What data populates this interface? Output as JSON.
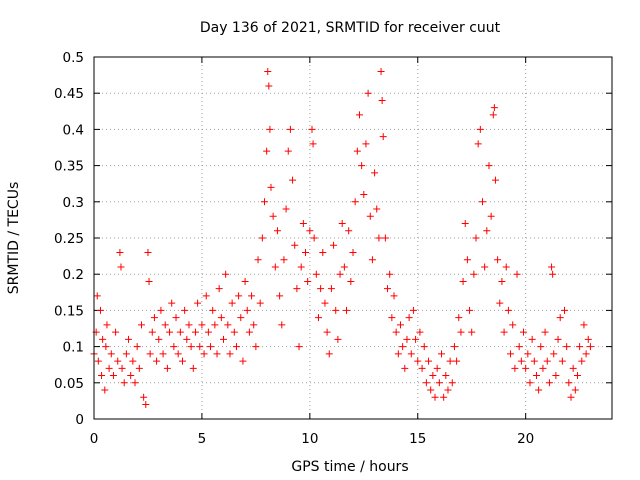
{
  "chart_data": {
    "type": "scatter",
    "title": "Day 136 of 2021, SRMTID for receiver cuut",
    "xlabel": "GPS time / hours",
    "ylabel": "SRMTID / TECUs",
    "xlim": [
      0,
      24
    ],
    "ylim": [
      0,
      0.5
    ],
    "x_ticks": [
      "0",
      "5",
      "10",
      "15",
      "20"
    ],
    "y_ticks": [
      "0",
      "0.05",
      "0.1",
      "0.15",
      "0.2",
      "0.25",
      "0.3",
      "0.35",
      "0.4",
      "0.45",
      "0.5"
    ],
    "grid": true,
    "marker": "+",
    "color": "#ff0000",
    "series": [
      {
        "values": [
          [
            0.0,
            0.09
          ],
          [
            0.1,
            0.12
          ],
          [
            0.15,
            0.17
          ],
          [
            0.2,
            0.08
          ],
          [
            0.3,
            0.15
          ],
          [
            0.35,
            0.06
          ],
          [
            0.4,
            0.11
          ],
          [
            0.5,
            0.04
          ],
          [
            0.55,
            0.1
          ],
          [
            0.6,
            0.13
          ],
          [
            0.7,
            0.07
          ],
          [
            0.8,
            0.09
          ],
          [
            0.9,
            0.06
          ],
          [
            1.0,
            0.12
          ],
          [
            1.1,
            0.08
          ],
          [
            1.2,
            0.23
          ],
          [
            1.25,
            0.21
          ],
          [
            1.3,
            0.07
          ],
          [
            1.4,
            0.05
          ],
          [
            1.5,
            0.09
          ],
          [
            1.6,
            0.11
          ],
          [
            1.7,
            0.06
          ],
          [
            1.8,
            0.08
          ],
          [
            1.9,
            0.05
          ],
          [
            2.0,
            0.1
          ],
          [
            2.1,
            0.07
          ],
          [
            2.2,
            0.13
          ],
          [
            2.3,
            0.03
          ],
          [
            2.4,
            0.02
          ],
          [
            2.5,
            0.23
          ],
          [
            2.55,
            0.19
          ],
          [
            2.6,
            0.09
          ],
          [
            2.7,
            0.12
          ],
          [
            2.8,
            0.14
          ],
          [
            2.9,
            0.08
          ],
          [
            3.0,
            0.11
          ],
          [
            3.1,
            0.15
          ],
          [
            3.2,
            0.09
          ],
          [
            3.3,
            0.13
          ],
          [
            3.4,
            0.07
          ],
          [
            3.5,
            0.12
          ],
          [
            3.6,
            0.16
          ],
          [
            3.7,
            0.1
          ],
          [
            3.8,
            0.14
          ],
          [
            3.9,
            0.09
          ],
          [
            4.0,
            0.12
          ],
          [
            4.1,
            0.08
          ],
          [
            4.2,
            0.15
          ],
          [
            4.3,
            0.11
          ],
          [
            4.4,
            0.13
          ],
          [
            4.5,
            0.1
          ],
          [
            4.6,
            0.07
          ],
          [
            4.7,
            0.12
          ],
          [
            4.8,
            0.16
          ],
          [
            4.9,
            0.1
          ],
          [
            5.0,
            0.13
          ],
          [
            5.1,
            0.09
          ],
          [
            5.2,
            0.17
          ],
          [
            5.3,
            0.12
          ],
          [
            5.4,
            0.1
          ],
          [
            5.5,
            0.15
          ],
          [
            5.6,
            0.13
          ],
          [
            5.7,
            0.09
          ],
          [
            5.8,
            0.18
          ],
          [
            5.9,
            0.14
          ],
          [
            6.0,
            0.11
          ],
          [
            6.1,
            0.2
          ],
          [
            6.2,
            0.13
          ],
          [
            6.3,
            0.09
          ],
          [
            6.4,
            0.16
          ],
          [
            6.5,
            0.12
          ],
          [
            6.6,
            0.1
          ],
          [
            6.7,
            0.17
          ],
          [
            6.8,
            0.14
          ],
          [
            6.9,
            0.08
          ],
          [
            7.0,
            0.19
          ],
          [
            7.1,
            0.15
          ],
          [
            7.2,
            0.12
          ],
          [
            7.3,
            0.17
          ],
          [
            7.4,
            0.13
          ],
          [
            7.5,
            0.1
          ],
          [
            7.6,
            0.22
          ],
          [
            7.7,
            0.16
          ],
          [
            7.8,
            0.25
          ],
          [
            7.9,
            0.3
          ],
          [
            8.0,
            0.37
          ],
          [
            8.05,
            0.48
          ],
          [
            8.1,
            0.46
          ],
          [
            8.15,
            0.4
          ],
          [
            8.2,
            0.32
          ],
          [
            8.3,
            0.28
          ],
          [
            8.4,
            0.21
          ],
          [
            8.5,
            0.26
          ],
          [
            8.6,
            0.17
          ],
          [
            8.7,
            0.13
          ],
          [
            8.8,
            0.22
          ],
          [
            8.9,
            0.29
          ],
          [
            9.0,
            0.37
          ],
          [
            9.1,
            0.4
          ],
          [
            9.2,
            0.33
          ],
          [
            9.3,
            0.24
          ],
          [
            9.4,
            0.18
          ],
          [
            9.5,
            0.1
          ],
          [
            9.6,
            0.21
          ],
          [
            9.7,
            0.27
          ],
          [
            9.8,
            0.23
          ],
          [
            9.9,
            0.19
          ],
          [
            10.0,
            0.26
          ],
          [
            10.1,
            0.4
          ],
          [
            10.15,
            0.38
          ],
          [
            10.2,
            0.25
          ],
          [
            10.3,
            0.2
          ],
          [
            10.4,
            0.14
          ],
          [
            10.5,
            0.18
          ],
          [
            10.6,
            0.23
          ],
          [
            10.7,
            0.16
          ],
          [
            10.8,
            0.12
          ],
          [
            10.9,
            0.09
          ],
          [
            11.0,
            0.18
          ],
          [
            11.1,
            0.24
          ],
          [
            11.2,
            0.15
          ],
          [
            11.3,
            0.11
          ],
          [
            11.4,
            0.2
          ],
          [
            11.5,
            0.27
          ],
          [
            11.6,
            0.21
          ],
          [
            11.7,
            0.15
          ],
          [
            11.8,
            0.26
          ],
          [
            11.9,
            0.19
          ],
          [
            12.0,
            0.23
          ],
          [
            12.1,
            0.3
          ],
          [
            12.2,
            0.37
          ],
          [
            12.3,
            0.42
          ],
          [
            12.4,
            0.35
          ],
          [
            12.5,
            0.31
          ],
          [
            12.6,
            0.38
          ],
          [
            12.7,
            0.45
          ],
          [
            12.8,
            0.28
          ],
          [
            12.9,
            0.22
          ],
          [
            13.0,
            0.34
          ],
          [
            13.1,
            0.29
          ],
          [
            13.2,
            0.25
          ],
          [
            13.3,
            0.48
          ],
          [
            13.35,
            0.44
          ],
          [
            13.4,
            0.39
          ],
          [
            13.5,
            0.25
          ],
          [
            13.6,
            0.18
          ],
          [
            13.7,
            0.2
          ],
          [
            13.8,
            0.14
          ],
          [
            13.9,
            0.17
          ],
          [
            14.0,
            0.12
          ],
          [
            14.1,
            0.09
          ],
          [
            14.2,
            0.13
          ],
          [
            14.3,
            0.1
          ],
          [
            14.4,
            0.07
          ],
          [
            14.5,
            0.11
          ],
          [
            14.6,
            0.14
          ],
          [
            14.7,
            0.09
          ],
          [
            14.8,
            0.15
          ],
          [
            14.9,
            0.11
          ],
          [
            15.0,
            0.08
          ],
          [
            15.1,
            0.12
          ],
          [
            15.2,
            0.07
          ],
          [
            15.3,
            0.1
          ],
          [
            15.4,
            0.05
          ],
          [
            15.5,
            0.08
          ],
          [
            15.6,
            0.04
          ],
          [
            15.7,
            0.06
          ],
          [
            15.8,
            0.03
          ],
          [
            15.9,
            0.07
          ],
          [
            16.0,
            0.05
          ],
          [
            16.1,
            0.09
          ],
          [
            16.2,
            0.03
          ],
          [
            16.3,
            0.06
          ],
          [
            16.4,
            0.04
          ],
          [
            16.5,
            0.08
          ],
          [
            16.6,
            0.05
          ],
          [
            16.7,
            0.1
          ],
          [
            16.8,
            0.08
          ],
          [
            16.9,
            0.14
          ],
          [
            17.0,
            0.12
          ],
          [
            17.1,
            0.19
          ],
          [
            17.2,
            0.27
          ],
          [
            17.3,
            0.22
          ],
          [
            17.4,
            0.15
          ],
          [
            17.5,
            0.12
          ],
          [
            17.6,
            0.2
          ],
          [
            17.7,
            0.25
          ],
          [
            17.8,
            0.38
          ],
          [
            17.9,
            0.4
          ],
          [
            18.0,
            0.3
          ],
          [
            18.1,
            0.21
          ],
          [
            18.2,
            0.26
          ],
          [
            18.3,
            0.35
          ],
          [
            18.4,
            0.28
          ],
          [
            18.5,
            0.42
          ],
          [
            18.55,
            0.43
          ],
          [
            18.6,
            0.33
          ],
          [
            18.7,
            0.22
          ],
          [
            18.8,
            0.16
          ],
          [
            18.9,
            0.19
          ],
          [
            19.0,
            0.12
          ],
          [
            19.1,
            0.21
          ],
          [
            19.2,
            0.15
          ],
          [
            19.3,
            0.09
          ],
          [
            19.4,
            0.13
          ],
          [
            19.5,
            0.07
          ],
          [
            19.6,
            0.2
          ],
          [
            19.7,
            0.1
          ],
          [
            19.8,
            0.08
          ],
          [
            19.9,
            0.12
          ],
          [
            20.0,
            0.07
          ],
          [
            20.1,
            0.09
          ],
          [
            20.2,
            0.05
          ],
          [
            20.3,
            0.11
          ],
          [
            20.4,
            0.08
          ],
          [
            20.5,
            0.06
          ],
          [
            20.6,
            0.04
          ],
          [
            20.7,
            0.1
          ],
          [
            20.8,
            0.07
          ],
          [
            20.9,
            0.12
          ],
          [
            21.0,
            0.08
          ],
          [
            21.1,
            0.05
          ],
          [
            21.2,
            0.21
          ],
          [
            21.25,
            0.2
          ],
          [
            21.3,
            0.09
          ],
          [
            21.4,
            0.06
          ],
          [
            21.5,
            0.11
          ],
          [
            21.6,
            0.14
          ],
          [
            21.7,
            0.08
          ],
          [
            21.8,
            0.15
          ],
          [
            21.9,
            0.1
          ],
          [
            22.0,
            0.05
          ],
          [
            22.1,
            0.03
          ],
          [
            22.2,
            0.07
          ],
          [
            22.3,
            0.04
          ],
          [
            22.4,
            0.06
          ],
          [
            22.5,
            0.1
          ],
          [
            22.6,
            0.08
          ],
          [
            22.7,
            0.13
          ],
          [
            22.8,
            0.09
          ],
          [
            22.9,
            0.11
          ],
          [
            23.0,
            0.1
          ]
        ]
      }
    ]
  }
}
